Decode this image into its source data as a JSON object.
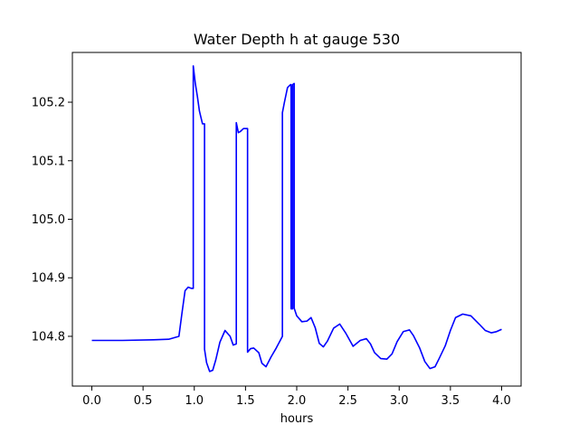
{
  "chart_data": {
    "type": "line",
    "title": "Water Depth h at gauge 530",
    "xlabel": "hours",
    "ylabel": "",
    "xlim": [
      -0.19,
      4.19
    ],
    "ylim": [
      104.715,
      105.285
    ],
    "xticks": [
      0.0,
      0.5,
      1.0,
      1.5,
      2.0,
      2.5,
      3.0,
      3.5,
      4.0
    ],
    "xtick_labels": [
      "0.0",
      "0.5",
      "1.0",
      "1.5",
      "2.0",
      "2.5",
      "3.0",
      "3.5",
      "4.0"
    ],
    "yticks": [
      104.8,
      104.9,
      105.0,
      105.1,
      105.2
    ],
    "ytick_labels": [
      "104.8",
      "104.9",
      "105.0",
      "105.1",
      "105.2"
    ],
    "grid": false,
    "legend": "none",
    "series": [
      {
        "color": "#0000ff",
        "x": [
          0.0,
          0.3,
          0.6,
          0.75,
          0.85,
          0.88,
          0.91,
          0.94,
          0.97,
          0.99,
          0.99,
          1.01,
          1.03,
          1.05,
          1.08,
          1.1,
          1.1,
          1.12,
          1.15,
          1.18,
          1.21,
          1.25,
          1.3,
          1.35,
          1.38,
          1.41,
          1.41,
          1.43,
          1.45,
          1.48,
          1.52,
          1.52,
          1.55,
          1.58,
          1.63,
          1.66,
          1.7,
          1.75,
          1.8,
          1.86,
          1.86,
          1.88,
          1.91,
          1.94,
          1.945,
          1.945,
          1.96,
          1.96,
          1.975,
          1.975,
          2.0,
          2.05,
          2.1,
          2.14,
          2.18,
          2.22,
          2.26,
          2.3,
          2.36,
          2.42,
          2.48,
          2.55,
          2.62,
          2.68,
          2.72,
          2.76,
          2.82,
          2.88,
          2.93,
          2.98,
          3.04,
          3.1,
          3.14,
          3.2,
          3.25,
          3.3,
          3.35,
          3.39,
          3.45,
          3.5,
          3.55,
          3.62,
          3.7,
          3.78,
          3.84,
          3.9,
          3.95,
          4.0
        ],
        "y": [
          104.793,
          104.793,
          104.794,
          104.795,
          104.8,
          104.84,
          104.878,
          104.884,
          104.882,
          104.882,
          105.262,
          105.232,
          105.21,
          105.185,
          105.163,
          105.163,
          104.778,
          104.755,
          104.74,
          104.742,
          104.76,
          104.79,
          104.81,
          104.8,
          104.785,
          104.787,
          105.165,
          105.148,
          105.15,
          105.155,
          105.155,
          104.773,
          104.779,
          104.78,
          104.772,
          104.754,
          104.748,
          104.765,
          104.78,
          104.8,
          105.182,
          105.2,
          105.225,
          105.23,
          105.23,
          104.847,
          104.847,
          105.23,
          105.232,
          104.848,
          104.835,
          104.825,
          104.826,
          104.832,
          104.815,
          104.788,
          104.782,
          104.792,
          104.814,
          104.821,
          104.805,
          104.783,
          104.793,
          104.796,
          104.787,
          104.772,
          104.762,
          104.761,
          104.77,
          104.791,
          104.808,
          104.811,
          104.801,
          104.78,
          104.757,
          104.745,
          104.748,
          104.762,
          104.784,
          104.81,
          104.832,
          104.838,
          104.835,
          104.821,
          104.81,
          104.806,
          104.808,
          104.812
        ]
      }
    ]
  }
}
